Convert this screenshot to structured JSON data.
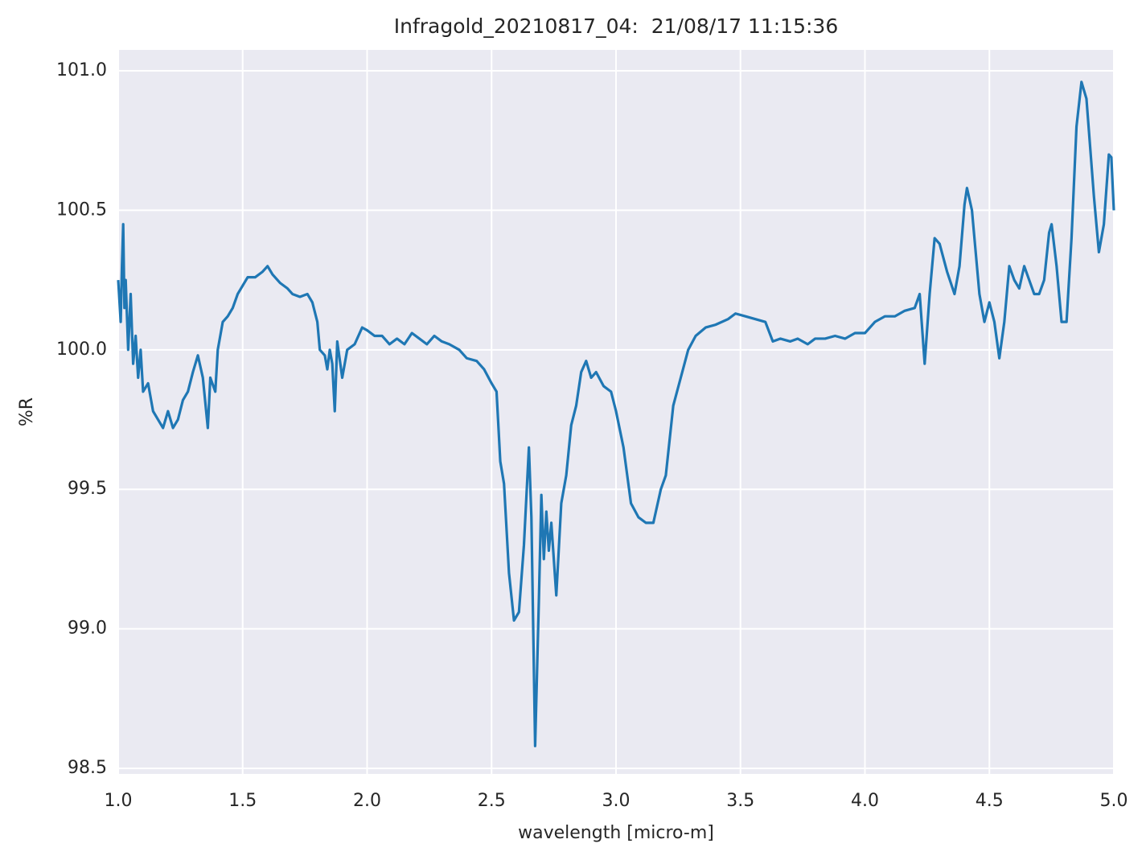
{
  "chart_data": {
    "type": "line",
    "title": "Infragold_20210817_04:  21/08/17 11:15:36",
    "xlabel": "wavelength [micro-m]",
    "ylabel": "%R",
    "xlim": [
      1.0,
      5.0
    ],
    "ylim": [
      98.48,
      101.075
    ],
    "xticks": [
      {
        "value": 1,
        "label": "1.0"
      },
      1.5,
      {
        "value": 2,
        "label": "2.0"
      },
      2.5,
      {
        "value": 3,
        "label": "3.0"
      },
      3.5,
      {
        "value": 4,
        "label": "4.0"
      },
      4.5,
      {
        "value": 5,
        "label": "5.0"
      }
    ],
    "yticks": [
      98.5,
      {
        "value": 99,
        "label": "99.0"
      },
      99.5,
      {
        "value": 100,
        "label": "100.0"
      },
      100.5,
      {
        "value": 101,
        "label": "101.0"
      }
    ],
    "grid": true,
    "background": "#eaeaf2",
    "x": [
      1.0,
      1.01,
      1.015,
      1.02,
      1.025,
      1.03,
      1.04,
      1.05,
      1.06,
      1.07,
      1.08,
      1.09,
      1.1,
      1.12,
      1.14,
      1.16,
      1.18,
      1.2,
      1.22,
      1.24,
      1.26,
      1.28,
      1.3,
      1.32,
      1.34,
      1.36,
      1.37,
      1.39,
      1.4,
      1.42,
      1.44,
      1.46,
      1.48,
      1.5,
      1.52,
      1.55,
      1.58,
      1.6,
      1.62,
      1.65,
      1.68,
      1.7,
      1.73,
      1.76,
      1.78,
      1.8,
      1.81,
      1.83,
      1.84,
      1.85,
      1.86,
      1.87,
      1.88,
      1.9,
      1.92,
      1.95,
      1.98,
      2.0,
      2.03,
      2.06,
      2.09,
      2.12,
      2.15,
      2.18,
      2.21,
      2.24,
      2.27,
      2.3,
      2.33,
      2.37,
      2.4,
      2.44,
      2.47,
      2.5,
      2.52,
      2.535,
      2.55,
      2.57,
      2.59,
      2.61,
      2.63,
      2.65,
      2.66,
      2.675,
      2.69,
      2.7,
      2.71,
      2.72,
      2.73,
      2.74,
      2.76,
      2.78,
      2.8,
      2.82,
      2.84,
      2.86,
      2.88,
      2.9,
      2.92,
      2.95,
      2.98,
      3.0,
      3.03,
      3.06,
      3.09,
      3.12,
      3.15,
      3.18,
      3.2,
      3.23,
      3.26,
      3.29,
      3.32,
      3.36,
      3.4,
      3.45,
      3.48,
      3.52,
      3.56,
      3.6,
      3.63,
      3.66,
      3.7,
      3.73,
      3.77,
      3.8,
      3.84,
      3.88,
      3.92,
      3.96,
      4.0,
      4.04,
      4.08,
      4.12,
      4.16,
      4.2,
      4.22,
      4.24,
      4.26,
      4.28,
      4.3,
      4.33,
      4.36,
      4.38,
      4.4,
      4.41,
      4.43,
      4.46,
      4.48,
      4.5,
      4.52,
      4.54,
      4.56,
      4.58,
      4.6,
      4.62,
      4.64,
      4.66,
      4.68,
      4.7,
      4.72,
      4.74,
      4.75,
      4.77,
      4.79,
      4.81,
      4.83,
      4.85,
      4.87,
      4.89,
      4.92,
      4.94,
      4.96,
      4.98,
      4.99,
      5.0
    ],
    "series": [
      {
        "name": "%R",
        "color": "#1f77b4",
        "values": [
          100.25,
          100.1,
          100.3,
          100.45,
          100.15,
          100.25,
          100.0,
          100.2,
          99.95,
          100.05,
          99.9,
          100.0,
          99.85,
          99.88,
          99.78,
          99.75,
          99.72,
          99.78,
          99.72,
          99.75,
          99.82,
          99.85,
          99.92,
          99.98,
          99.9,
          99.72,
          99.9,
          99.85,
          100.0,
          100.1,
          100.12,
          100.15,
          100.2,
          100.23,
          100.26,
          100.26,
          100.28,
          100.3,
          100.27,
          100.24,
          100.22,
          100.2,
          100.19,
          100.2,
          100.17,
          100.1,
          100.0,
          99.98,
          99.93,
          100.0,
          99.95,
          99.78,
          100.03,
          99.9,
          100.0,
          100.02,
          100.08,
          100.07,
          100.05,
          100.05,
          100.02,
          100.04,
          100.02,
          100.06,
          100.04,
          100.02,
          100.05,
          100.03,
          100.02,
          100.0,
          99.97,
          99.96,
          99.93,
          99.88,
          99.85,
          99.6,
          99.52,
          99.2,
          99.03,
          99.06,
          99.3,
          99.65,
          99.4,
          98.58,
          99.1,
          99.48,
          99.25,
          99.42,
          99.28,
          99.38,
          99.12,
          99.45,
          99.55,
          99.73,
          99.8,
          99.92,
          99.96,
          99.9,
          99.92,
          99.87,
          99.85,
          99.78,
          99.65,
          99.45,
          99.4,
          99.38,
          99.38,
          99.5,
          99.55,
          99.8,
          99.9,
          100.0,
          100.05,
          100.08,
          100.09,
          100.11,
          100.13,
          100.12,
          100.11,
          100.1,
          100.03,
          100.04,
          100.03,
          100.04,
          100.02,
          100.04,
          100.04,
          100.05,
          100.04,
          100.06,
          100.06,
          100.1,
          100.12,
          100.12,
          100.14,
          100.15,
          100.2,
          99.95,
          100.2,
          100.4,
          100.38,
          100.28,
          100.2,
          100.3,
          100.52,
          100.58,
          100.5,
          100.2,
          100.1,
          100.17,
          100.1,
          99.97,
          100.1,
          100.3,
          100.25,
          100.22,
          100.3,
          100.25,
          100.2,
          100.2,
          100.25,
          100.42,
          100.45,
          100.3,
          100.1,
          100.1,
          100.4,
          100.8,
          100.96,
          100.9,
          100.55,
          100.35,
          100.45,
          100.7,
          100.69,
          100.5
        ]
      }
    ]
  }
}
